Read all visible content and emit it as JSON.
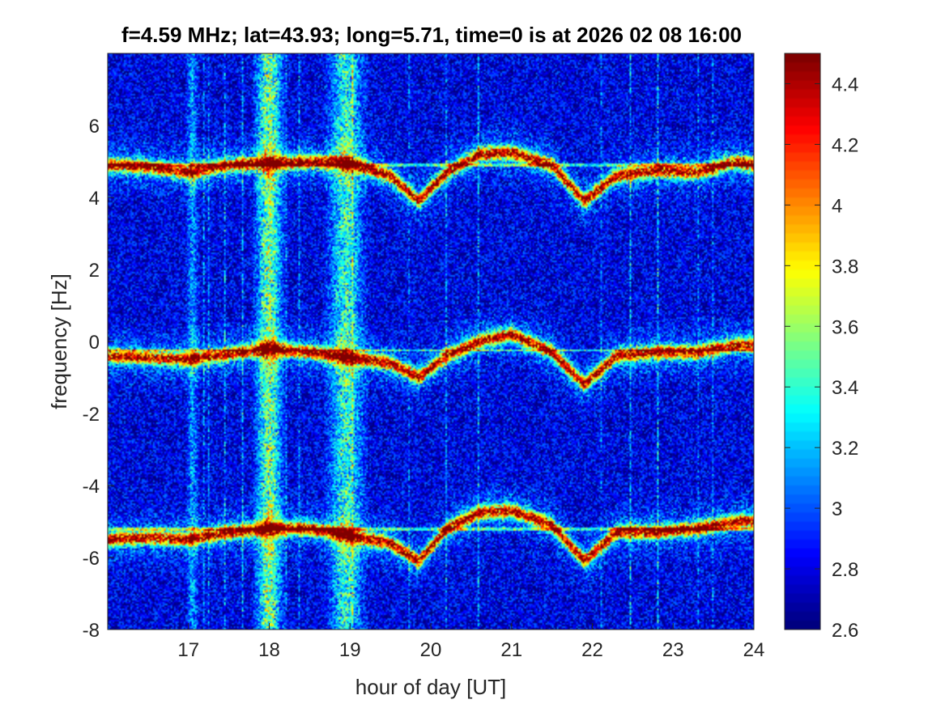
{
  "chart_data": {
    "type": "heatmap",
    "title": "f=4.59 MHz;  lat=43.93; long=5.71, time=0 is at 2026 02 08 16:00",
    "xlabel": "hour of day [UT]",
    "ylabel": "frequency [Hz]",
    "xlim": [
      16.0,
      24.0
    ],
    "ylim": [
      -8,
      8
    ],
    "xticks": [
      "17",
      "18",
      "19",
      "20",
      "21",
      "22",
      "23",
      "24"
    ],
    "yticks": [
      "-8",
      "-6",
      "-4",
      "-2",
      "0",
      "2",
      "4",
      "6"
    ],
    "colorbar": {
      "clim": [
        2.6,
        4.5
      ],
      "ticks": [
        "2.6",
        "2.8",
        "3",
        "3.2",
        "3.4",
        "3.6",
        "3.8",
        "4",
        "4.2",
        "4.4"
      ],
      "colormap": "jet"
    },
    "background_level": 2.8,
    "traces": [
      {
        "x": [
          16.0,
          16.5,
          17.0,
          17.5,
          18.0,
          18.5,
          19.0,
          19.5,
          19.85,
          20.2,
          20.6,
          21.0,
          21.5,
          21.9,
          22.3,
          22.8,
          23.3,
          23.8,
          24.0
        ],
        "y": [
          4.9,
          4.85,
          4.7,
          4.9,
          4.95,
          5.0,
          4.95,
          4.6,
          3.9,
          4.7,
          5.2,
          5.25,
          4.9,
          3.9,
          4.6,
          4.75,
          4.7,
          5.0,
          4.9
        ]
      },
      {
        "x": [
          16.0,
          16.5,
          17.0,
          17.5,
          18.0,
          18.5,
          19.0,
          19.5,
          19.85,
          20.2,
          20.6,
          21.0,
          21.5,
          21.9,
          22.3,
          22.8,
          23.3,
          23.8,
          24.0
        ],
        "y": [
          -0.4,
          -0.45,
          -0.5,
          -0.35,
          -0.2,
          -0.3,
          -0.45,
          -0.6,
          -1.0,
          -0.4,
          0.0,
          0.2,
          -0.3,
          -1.2,
          -0.4,
          -0.3,
          -0.3,
          -0.1,
          -0.1
        ]
      },
      {
        "x": [
          16.0,
          16.5,
          17.0,
          17.5,
          18.0,
          18.5,
          19.0,
          19.5,
          19.85,
          20.2,
          20.6,
          21.0,
          21.5,
          21.9,
          22.3,
          22.8,
          23.3,
          23.8,
          24.0
        ],
        "y": [
          -5.5,
          -5.45,
          -5.5,
          -5.3,
          -5.2,
          -5.2,
          -5.4,
          -5.6,
          -6.1,
          -5.2,
          -4.75,
          -4.7,
          -5.1,
          -6.1,
          -5.3,
          -5.3,
          -5.2,
          -5.0,
          -5.0
        ]
      }
    ],
    "flat_lines_y": [
      4.9,
      -0.25,
      -5.2
    ],
    "vertical_bands": [
      {
        "x_center": 17.05,
        "width": 0.15,
        "level": 3.15
      },
      {
        "x_center": 18.0,
        "width": 0.35,
        "level": 3.55
      },
      {
        "x_center": 18.95,
        "width": 0.45,
        "level": 3.4
      }
    ],
    "grid": false,
    "legend": "colorbar-right"
  }
}
